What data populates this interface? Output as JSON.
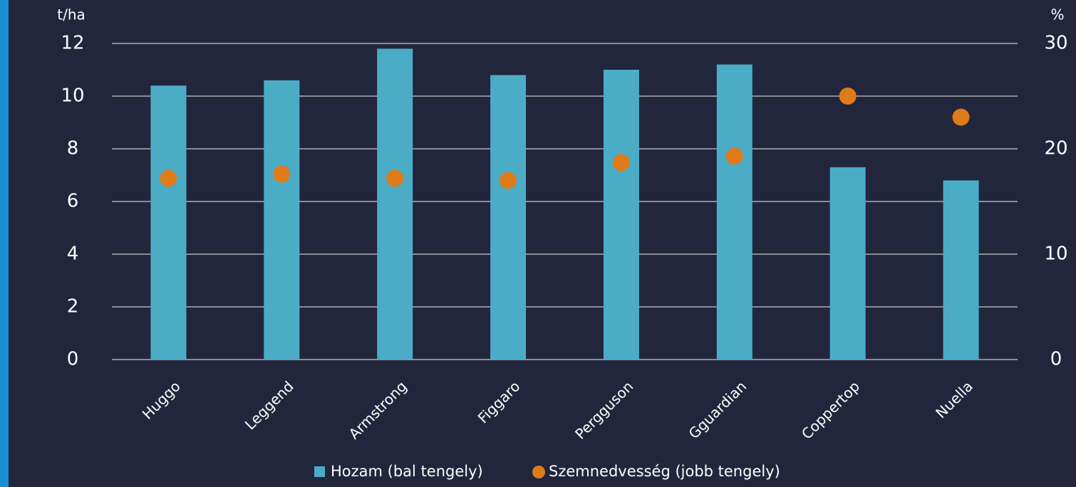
{
  "chart_data": {
    "type": "bar",
    "categories": [
      "Huggo",
      "Leggend",
      "Armstrong",
      "Figgaro",
      "Pergguson",
      "Gguardian",
      "Coppertop",
      "Nuella"
    ],
    "series": [
      {
        "name": "Hozam (bal tengely)",
        "color": "#4bacc6",
        "type": "bar",
        "values": [
          10.4,
          10.6,
          11.8,
          10.8,
          11.0,
          11.2,
          7.3,
          6.8
        ]
      },
      {
        "name": "Szemnedvesség (jobb tengely)",
        "color": "#e07b1a",
        "type": "scatter",
        "axis": "y2",
        "values": [
          17.2,
          17.6,
          17.2,
          17.0,
          18.7,
          19.3,
          25.0,
          23.0
        ]
      }
    ],
    "y_label": "t/ha",
    "y2_label": "%",
    "ylim": [
      0,
      12
    ],
    "yticks": [
      0,
      2,
      4,
      6,
      8,
      10,
      12
    ],
    "y2lim": [
      0,
      30
    ],
    "y2ticks": [
      0,
      10,
      20,
      30
    ],
    "grid": true
  }
}
